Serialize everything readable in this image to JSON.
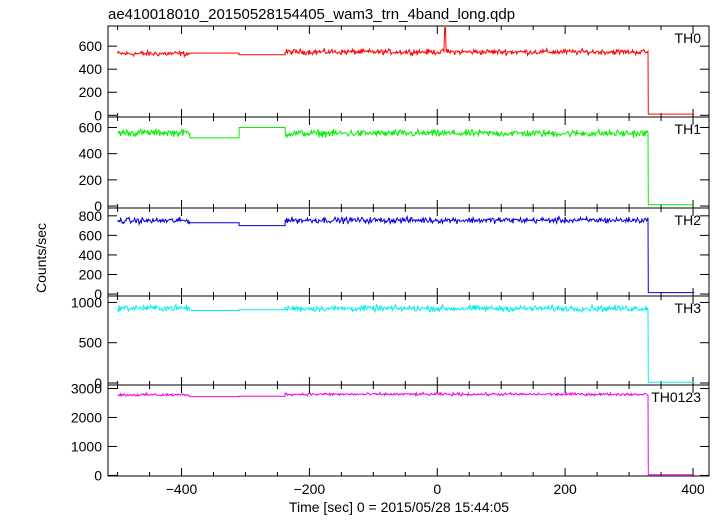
{
  "chart_data": {
    "type": "line",
    "title": "ae410018010_20150528154405_wam3_trn_4band_long.qdp",
    "xlabel": "Time [sec] 0 = 2015/05/28 15:44:05",
    "ylabel": "Counts/sec",
    "xlim": [
      -515,
      425
    ],
    "x_ticks": [
      -400,
      -200,
      0,
      200,
      400
    ],
    "x_tick_labels": [
      "−400",
      "−200",
      "0",
      "200",
      "400"
    ],
    "segments": {
      "block1": [
        -500,
        -387
      ],
      "flat_low": [
        -387,
        -310
      ],
      "flat_high": [
        -310,
        -238
      ],
      "block2": [
        -238,
        330
      ],
      "after": [
        330,
        402
      ]
    },
    "series": [
      {
        "name": "TH0",
        "color": "#ff0000",
        "ylim": [
          -15,
          775
        ],
        "y_ticks": [
          0,
          200,
          400,
          600
        ],
        "y_tick_labels": [
          "0",
          "200",
          "400",
          "600"
        ],
        "block1_level": 535,
        "flat_low_level": 540,
        "flat_high_level": 525,
        "block2_level": 550,
        "after_level": 10,
        "noise": 35,
        "spike": {
          "x": 12,
          "y": 760
        }
      },
      {
        "name": "TH1",
        "color": "#00ee00",
        "ylim": [
          -15,
          680
        ],
        "y_ticks": [
          0,
          200,
          400,
          600
        ],
        "y_tick_labels": [
          "0",
          "200",
          "400",
          "600"
        ],
        "block1_level": 560,
        "flat_low_level": 520,
        "flat_high_level": 600,
        "block2_level": 555,
        "after_level": 10,
        "noise": 40
      },
      {
        "name": "TH2",
        "color": "#0000dd",
        "ylim": [
          -20,
          880
        ],
        "y_ticks": [
          0,
          200,
          400,
          600,
          800
        ],
        "y_tick_labels": [
          "0",
          "200",
          "400",
          "600",
          "800"
        ],
        "block1_level": 750,
        "flat_low_level": 730,
        "flat_high_level": 700,
        "block2_level": 755,
        "after_level": 15,
        "noise": 45
      },
      {
        "name": "TH3",
        "color": "#00eeee",
        "ylim": [
          -25,
          1080
        ],
        "y_ticks": [
          0,
          500,
          1000
        ],
        "y_tick_labels": [
          "0",
          "500",
          "1000"
        ],
        "block1_level": 930,
        "flat_low_level": 900,
        "flat_high_level": 910,
        "block2_level": 925,
        "after_level": 10,
        "noise": 55
      },
      {
        "name": "TH0123",
        "color": "#ee00ee",
        "ylim": [
          -20,
          3120
        ],
        "y_ticks": [
          0,
          1000,
          2000,
          3000
        ],
        "y_tick_labels": [
          "0",
          "1000",
          "2000",
          "3000"
        ],
        "block1_level": 2780,
        "flat_low_level": 2720,
        "flat_high_level": 2730,
        "block2_level": 2800,
        "after_level": 20,
        "noise": 70
      }
    ]
  }
}
